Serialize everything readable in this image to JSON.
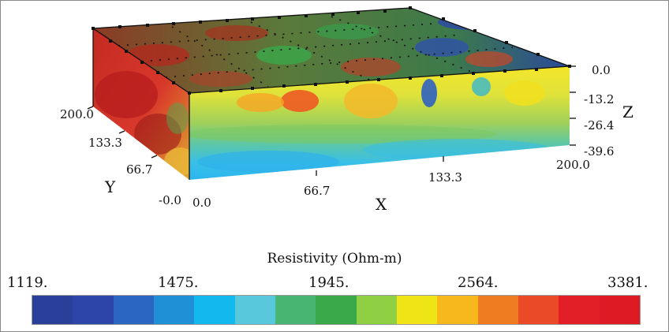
{
  "axes": {
    "x_name": "X",
    "y_name": "Y",
    "z_name": "Z",
    "x_ticks": [
      "0.0",
      "66.7",
      "133.3",
      "200.0"
    ],
    "y_ticks": [
      "-0.0",
      "66.7",
      "133.3",
      "200.0"
    ],
    "z_ticks": [
      "0.0",
      "-13.2",
      "-26.4",
      "-39.6"
    ]
  },
  "legend": {
    "title": "Resistivity (Ohm-m)",
    "values": [
      "1119.",
      "1475.",
      "1945.",
      "2564.",
      "3381."
    ],
    "colors": [
      "#2a3f9a",
      "#2d44a8",
      "#2a66c2",
      "#1f8fd6",
      "#12b8ee",
      "#58c9dc",
      "#49b572",
      "#3aa94a",
      "#8fcf43",
      "#eee416",
      "#f6b81c",
      "#f07c21",
      "#ea4a28",
      "#e21f26",
      "#de1b24"
    ]
  }
}
